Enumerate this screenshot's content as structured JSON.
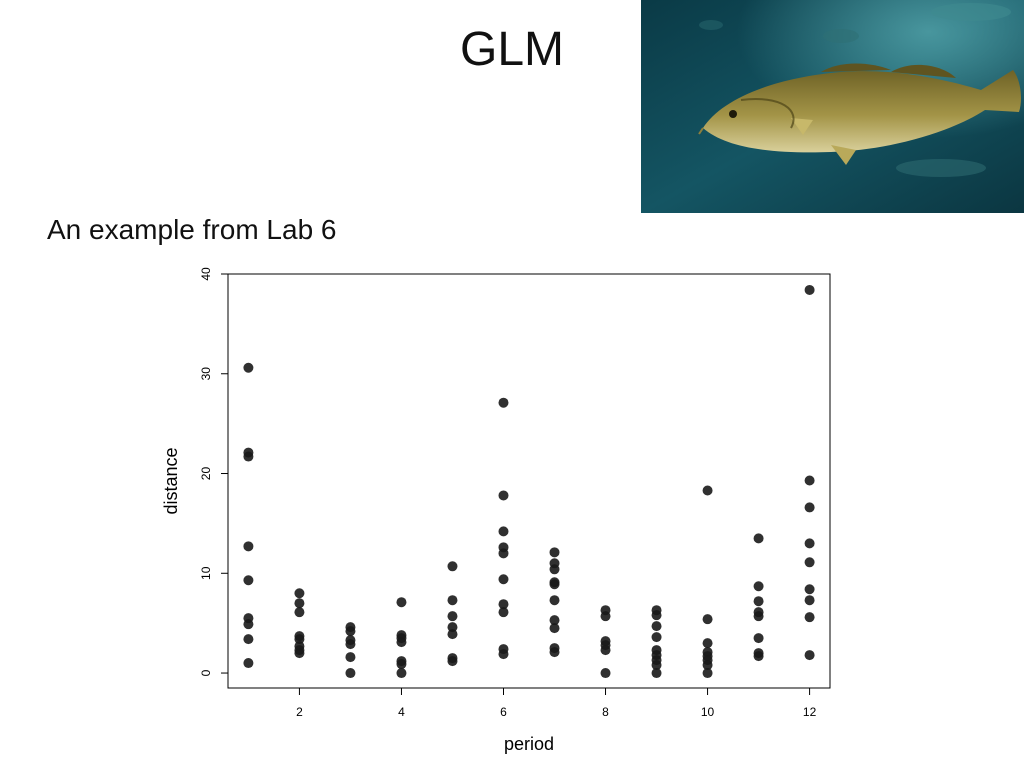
{
  "slide": {
    "title": "GLM",
    "subtitle": "An example from Lab 6"
  },
  "photo": {
    "subject": "fish-photo",
    "colors": {
      "water_dark": "#0a3540",
      "water_light": "#1e6a78",
      "fish_body": "#8a7a38",
      "fish_belly": "#d8cf9a"
    }
  },
  "chart_data": {
    "type": "scatter",
    "title": "",
    "xlabel": "period",
    "ylabel": "distance",
    "xlim": [
      0.6,
      12.4
    ],
    "ylim": [
      -1.5,
      40
    ],
    "xticks": [
      2,
      4,
      6,
      8,
      10,
      12
    ],
    "yticks": [
      0,
      10,
      20,
      30,
      40
    ],
    "grid": false,
    "point_color": "#1a1a1a",
    "points": [
      [
        1,
        30.6
      ],
      [
        1,
        22.1
      ],
      [
        1,
        21.7
      ],
      [
        1,
        12.7
      ],
      [
        1,
        9.3
      ],
      [
        1,
        5.5
      ],
      [
        1,
        4.9
      ],
      [
        1,
        3.4
      ],
      [
        1,
        1.0
      ],
      [
        2,
        8.0
      ],
      [
        2,
        7.0
      ],
      [
        2,
        6.1
      ],
      [
        2,
        3.7
      ],
      [
        2,
        3.4
      ],
      [
        2,
        2.7
      ],
      [
        2,
        2.3
      ],
      [
        2,
        2.0
      ],
      [
        3,
        4.6
      ],
      [
        3,
        4.2
      ],
      [
        3,
        3.3
      ],
      [
        3,
        2.9
      ],
      [
        3,
        1.6
      ],
      [
        3,
        0.0
      ],
      [
        4,
        7.1
      ],
      [
        4,
        3.8
      ],
      [
        4,
        3.5
      ],
      [
        4,
        3.1
      ],
      [
        4,
        1.2
      ],
      [
        4,
        0.9
      ],
      [
        4,
        0.0
      ],
      [
        5,
        10.7
      ],
      [
        5,
        7.3
      ],
      [
        5,
        5.7
      ],
      [
        5,
        4.6
      ],
      [
        5,
        3.9
      ],
      [
        5,
        1.5
      ],
      [
        5,
        1.2
      ],
      [
        6,
        27.1
      ],
      [
        6,
        17.8
      ],
      [
        6,
        14.2
      ],
      [
        6,
        12.6
      ],
      [
        6,
        12.0
      ],
      [
        6,
        9.4
      ],
      [
        6,
        6.9
      ],
      [
        6,
        6.1
      ],
      [
        6,
        2.4
      ],
      [
        6,
        1.9
      ],
      [
        7,
        12.1
      ],
      [
        7,
        11.0
      ],
      [
        7,
        10.4
      ],
      [
        7,
        9.1
      ],
      [
        7,
        8.9
      ],
      [
        7,
        7.3
      ],
      [
        7,
        5.3
      ],
      [
        7,
        4.5
      ],
      [
        7,
        2.5
      ],
      [
        7,
        2.1
      ],
      [
        8,
        6.3
      ],
      [
        8,
        5.7
      ],
      [
        8,
        3.2
      ],
      [
        8,
        2.8
      ],
      [
        8,
        2.3
      ],
      [
        8,
        0.0
      ],
      [
        9,
        6.3
      ],
      [
        9,
        5.8
      ],
      [
        9,
        4.7
      ],
      [
        9,
        3.6
      ],
      [
        9,
        2.3
      ],
      [
        9,
        1.8
      ],
      [
        9,
        1.3
      ],
      [
        9,
        0.8
      ],
      [
        9,
        0.0
      ],
      [
        10,
        18.3
      ],
      [
        10,
        5.4
      ],
      [
        10,
        3.0
      ],
      [
        10,
        2.1
      ],
      [
        10,
        1.7
      ],
      [
        10,
        1.3
      ],
      [
        10,
        0.8
      ],
      [
        10,
        0.0
      ],
      [
        11,
        13.5
      ],
      [
        11,
        8.7
      ],
      [
        11,
        7.2
      ],
      [
        11,
        6.1
      ],
      [
        11,
        5.7
      ],
      [
        11,
        3.5
      ],
      [
        11,
        2.0
      ],
      [
        11,
        1.7
      ],
      [
        12,
        38.4
      ],
      [
        12,
        19.3
      ],
      [
        12,
        16.6
      ],
      [
        12,
        13.0
      ],
      [
        12,
        11.1
      ],
      [
        12,
        8.4
      ],
      [
        12,
        7.3
      ],
      [
        12,
        5.6
      ],
      [
        12,
        1.8
      ]
    ]
  }
}
